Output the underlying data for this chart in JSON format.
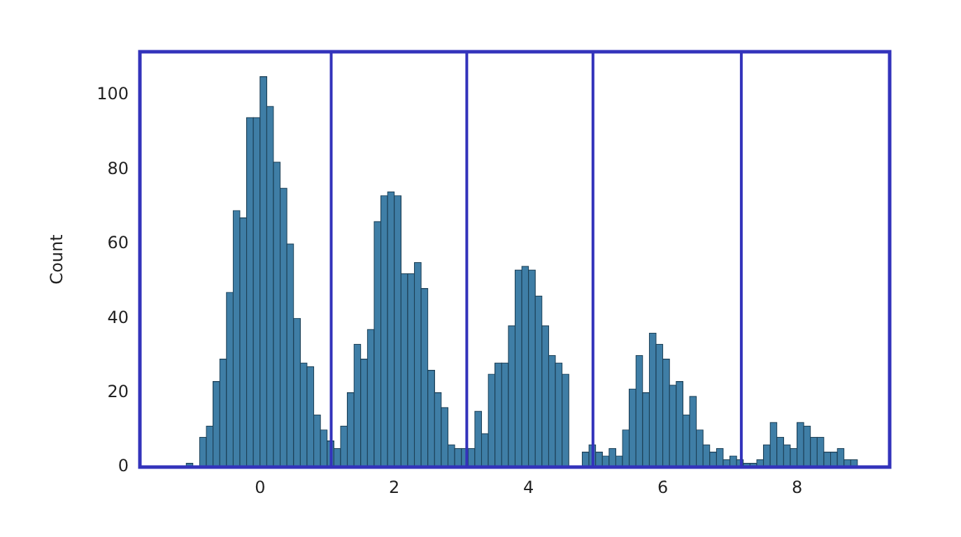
{
  "chart_data": {
    "type": "histogram",
    "ylabel": "Count",
    "color": "#3f7ea6",
    "bins": [
      -1.2,
      -1.1,
      -1.0,
      -0.9,
      -0.8,
      -0.7,
      -0.6,
      -0.5,
      -0.4,
      -0.3,
      -0.2,
      -0.1,
      0.0,
      0.1,
      0.2,
      0.3,
      0.4,
      0.5,
      0.6,
      0.7,
      0.8,
      0.9,
      1.0,
      1.1,
      1.2,
      1.3,
      1.4,
      1.5,
      1.6,
      1.7,
      1.8,
      1.9,
      2.0,
      2.1,
      2.2,
      2.3,
      2.4,
      2.5,
      2.6,
      2.7,
      2.8,
      2.9,
      3.0,
      3.1,
      3.2,
      3.3,
      3.4,
      3.5,
      3.6,
      3.7,
      3.8,
      3.9,
      4.0,
      4.1,
      4.2,
      4.3,
      4.4,
      4.5,
      4.6,
      4.7,
      4.8,
      4.9,
      5.0,
      5.1,
      5.2,
      5.3,
      5.4,
      5.5,
      5.6,
      5.7,
      5.8,
      5.9,
      6.0,
      6.1,
      6.2,
      6.3,
      6.4,
      6.5,
      6.6,
      6.7,
      6.8,
      6.9,
      7.0,
      7.1,
      7.2,
      7.3,
      7.4,
      7.5,
      7.6,
      7.7,
      7.8,
      7.9,
      8.0,
      8.1,
      8.2,
      8.3,
      8.4,
      8.5,
      8.6,
      8.7,
      8.8,
      8.9
    ],
    "values": [
      0,
      1,
      0,
      8,
      11,
      23,
      29,
      47,
      69,
      67,
      94,
      94,
      105,
      97,
      82,
      75,
      60,
      40,
      28,
      27,
      14,
      10,
      7,
      5,
      11,
      20,
      33,
      29,
      37,
      66,
      73,
      74,
      73,
      52,
      52,
      55,
      48,
      26,
      20,
      16,
      6,
      5,
      5,
      5,
      15,
      9,
      25,
      28,
      28,
      38,
      53,
      54,
      53,
      46,
      38,
      30,
      28,
      25,
      0,
      0,
      4,
      6,
      4,
      3,
      5,
      3,
      10,
      21,
      30,
      20,
      36,
      33,
      29,
      22,
      23,
      14,
      19,
      10,
      6,
      4,
      5,
      2,
      3,
      2,
      1,
      1,
      2,
      6,
      12,
      8,
      6,
      5,
      12,
      11,
      8,
      8,
      4,
      4,
      5,
      2,
      2
    ],
    "xlim": [
      -1.79,
      9.38
    ],
    "ylim": [
      0,
      111.7
    ],
    "xticks": [
      0,
      2,
      4,
      6,
      8
    ],
    "yticks": [
      0,
      20,
      40,
      60,
      80,
      100
    ],
    "grid": false,
    "legend": false,
    "ref_lines": [
      {
        "axis": "x",
        "value": 1.06,
        "color": "#3333bb"
      },
      {
        "axis": "x",
        "value": 3.08,
        "color": "#3333bb"
      },
      {
        "axis": "x",
        "value": 4.96,
        "color": "#3333bb"
      },
      {
        "axis": "x",
        "value": 7.17,
        "color": "#3333bb"
      }
    ]
  }
}
